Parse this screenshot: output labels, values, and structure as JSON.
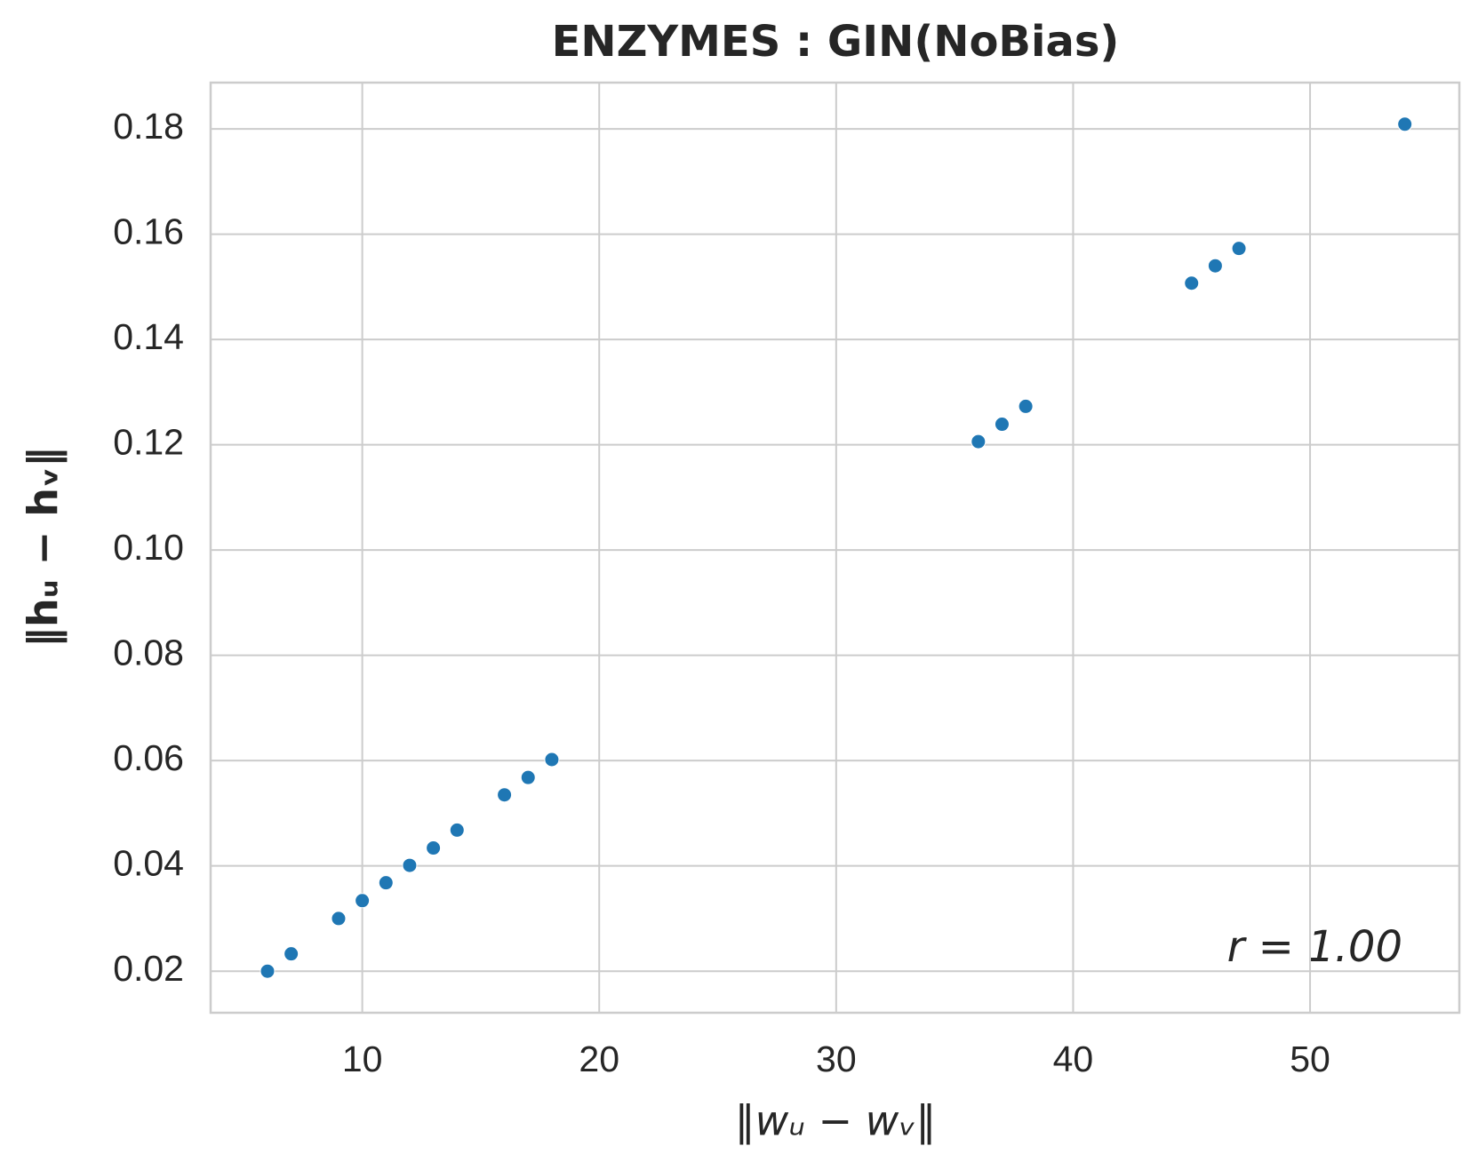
{
  "chart_data": {
    "type": "scatter",
    "title": "ENZYMES : GIN(NoBias)",
    "x_label": "‖wᵤ − wᵥ‖",
    "y_label": "‖hᵤ − hᵥ‖",
    "annotation": "r = 1.00",
    "color": "#1f77b4",
    "grid": true,
    "x": [
      6,
      7,
      9,
      10,
      11,
      12,
      13,
      14,
      16,
      17,
      18,
      36,
      37,
      38,
      45,
      46,
      47,
      54
    ],
    "y": [
      0.02,
      0.0233,
      0.03,
      0.0334,
      0.0368,
      0.0401,
      0.0434,
      0.0468,
      0.0535,
      0.0568,
      0.0602,
      0.1206,
      0.1239,
      0.1273,
      0.1507,
      0.154,
      0.1573,
      0.1809
    ],
    "xlim": [
      3.6,
      56.3
    ],
    "xticks": [
      10,
      20,
      30,
      40,
      50
    ],
    "ylim": [
      0.0121,
      0.1888
    ],
    "yticks": [
      {
        "value": 0.02,
        "label": "0.02"
      },
      {
        "value": 0.04,
        "label": "0.04"
      },
      {
        "value": 0.06,
        "label": "0.06"
      },
      {
        "value": 0.08,
        "label": "0.08"
      },
      {
        "value": 0.1,
        "label": "0.10"
      },
      {
        "value": 0.12,
        "label": "0.12"
      },
      {
        "value": 0.14,
        "label": "0.14"
      },
      {
        "value": 0.16,
        "label": "0.16"
      },
      {
        "value": 0.18,
        "label": "0.18"
      }
    ]
  }
}
